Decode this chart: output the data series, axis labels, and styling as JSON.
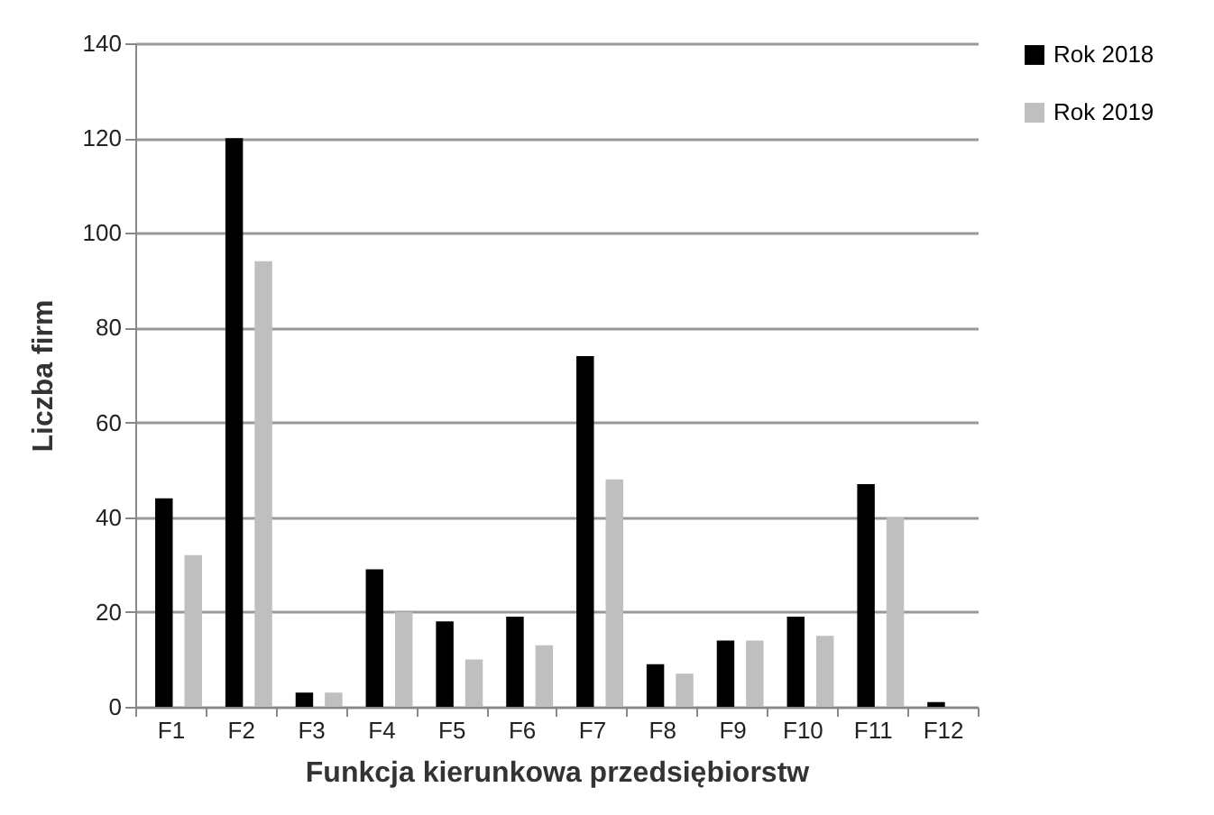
{
  "chart_data": {
    "type": "bar",
    "xlabel": "Funkcja kierunkowa przedsiębiorstw",
    "ylabel": "Liczba firm",
    "categories": [
      "F1",
      "F2",
      "F3",
      "F4",
      "F5",
      "F6",
      "F7",
      "F8",
      "F9",
      "F10",
      "F11",
      "F12"
    ],
    "series": [
      {
        "name": "Rok 2018",
        "color": "#000000",
        "values": [
          44,
          120,
          3,
          29,
          18,
          19,
          74,
          9,
          14,
          19,
          47,
          1
        ]
      },
      {
        "name": "Rok 2019",
        "color": "#bfbfbf",
        "values": [
          32,
          94,
          3,
          20,
          10,
          13,
          48,
          7,
          14,
          15,
          40,
          0
        ]
      }
    ],
    "ylim": [
      0,
      140
    ],
    "yticks": [
      0,
      20,
      40,
      60,
      80,
      100,
      120,
      140
    ],
    "grid": "y",
    "legend": "right"
  }
}
